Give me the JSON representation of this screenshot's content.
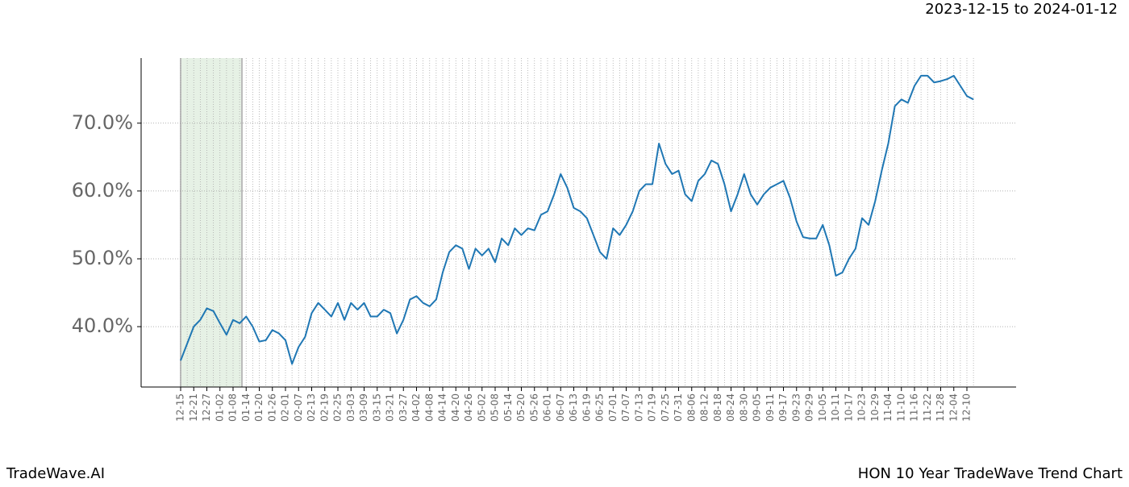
{
  "header": {
    "date_range": "2023-12-15 to 2024-01-12"
  },
  "footer": {
    "brand": "TradeWave.AI",
    "chart_title": "HON 10 Year TradeWave Trend Chart"
  },
  "chart_data": {
    "type": "line",
    "categories": [
      "12-15",
      null,
      "12-21",
      null,
      "12-27",
      null,
      "01-02",
      null,
      "01-08",
      null,
      "01-14",
      null,
      "01-20",
      null,
      "01-26",
      null,
      "02-01",
      null,
      "02-07",
      null,
      "02-13",
      null,
      "02-19",
      null,
      "02-25",
      null,
      "03-03",
      null,
      "03-09",
      null,
      "03-15",
      null,
      "03-21",
      null,
      "03-27",
      null,
      "04-02",
      null,
      "04-08",
      null,
      "04-14",
      null,
      "04-20",
      null,
      "04-26",
      null,
      "05-02",
      null,
      "05-08",
      null,
      "05-14",
      null,
      "05-20",
      null,
      "05-26",
      null,
      "06-01",
      null,
      "06-07",
      null,
      "06-13",
      null,
      "06-19",
      null,
      "06-25",
      null,
      "07-01",
      null,
      "07-07",
      null,
      "07-13",
      null,
      "07-19",
      null,
      "07-25",
      null,
      "07-31",
      null,
      "08-06",
      null,
      "08-12",
      null,
      "08-18",
      null,
      "08-24",
      null,
      "08-30",
      null,
      "09-05",
      null,
      "09-11",
      null,
      "09-17",
      null,
      "09-23",
      null,
      "09-29",
      null,
      "10-05",
      null,
      "10-11",
      null,
      "10-17",
      null,
      "10-23",
      null,
      "10-29",
      null,
      "11-04",
      null,
      "11-10",
      null,
      "11-16",
      null,
      "11-22",
      null,
      "11-28",
      null,
      "12-04",
      null,
      "12-10",
      null
    ],
    "values": [
      35.0,
      37.5,
      40,
      41,
      42.7,
      42.3,
      40.5,
      38.8,
      41,
      40.5,
      41.5,
      40,
      37.8,
      38,
      39.5,
      39,
      38,
      34.5,
      37,
      38.5,
      42,
      43.5,
      42.5,
      41.5,
      43.5,
      41,
      43.5,
      42.5,
      43.5,
      41.5,
      41.5,
      42.5,
      42,
      39,
      41,
      44,
      44.5,
      43.5,
      43,
      44,
      48,
      51,
      52,
      51.5,
      48.5,
      51.5,
      50.5,
      51.5,
      49.5,
      53,
      52,
      54.5,
      53.5,
      54.5,
      54.2,
      56.5,
      57,
      59.5,
      62.5,
      60.5,
      57.5,
      57,
      56,
      53.5,
      51,
      50,
      54.5,
      53.5,
      55,
      57,
      60,
      61,
      61,
      67,
      64,
      62.5,
      63,
      59.5,
      58.5,
      61.5,
      62.5,
      64.5,
      64,
      61,
      57,
      59.5,
      62.5,
      59.5,
      58,
      59.5,
      60.5,
      61,
      61.5,
      59,
      55.5,
      53.2,
      53,
      53,
      55,
      52,
      47.5,
      48,
      50,
      51.5,
      56,
      55,
      58.5,
      63,
      67,
      72.5,
      73.5,
      73,
      75.5,
      77,
      77,
      76,
      76.2,
      76.5,
      77,
      75.5,
      74,
      73.5
    ],
    "color": "#1f77b4",
    "ylim": [
      31.1,
      79.6
    ],
    "yticks": [
      {
        "value": 40,
        "label": "40.0%"
      },
      {
        "value": 50,
        "label": "50.0%"
      },
      {
        "value": 60,
        "label": "60.0%"
      },
      {
        "value": 70,
        "label": "70.0%"
      }
    ],
    "grid": true
  }
}
